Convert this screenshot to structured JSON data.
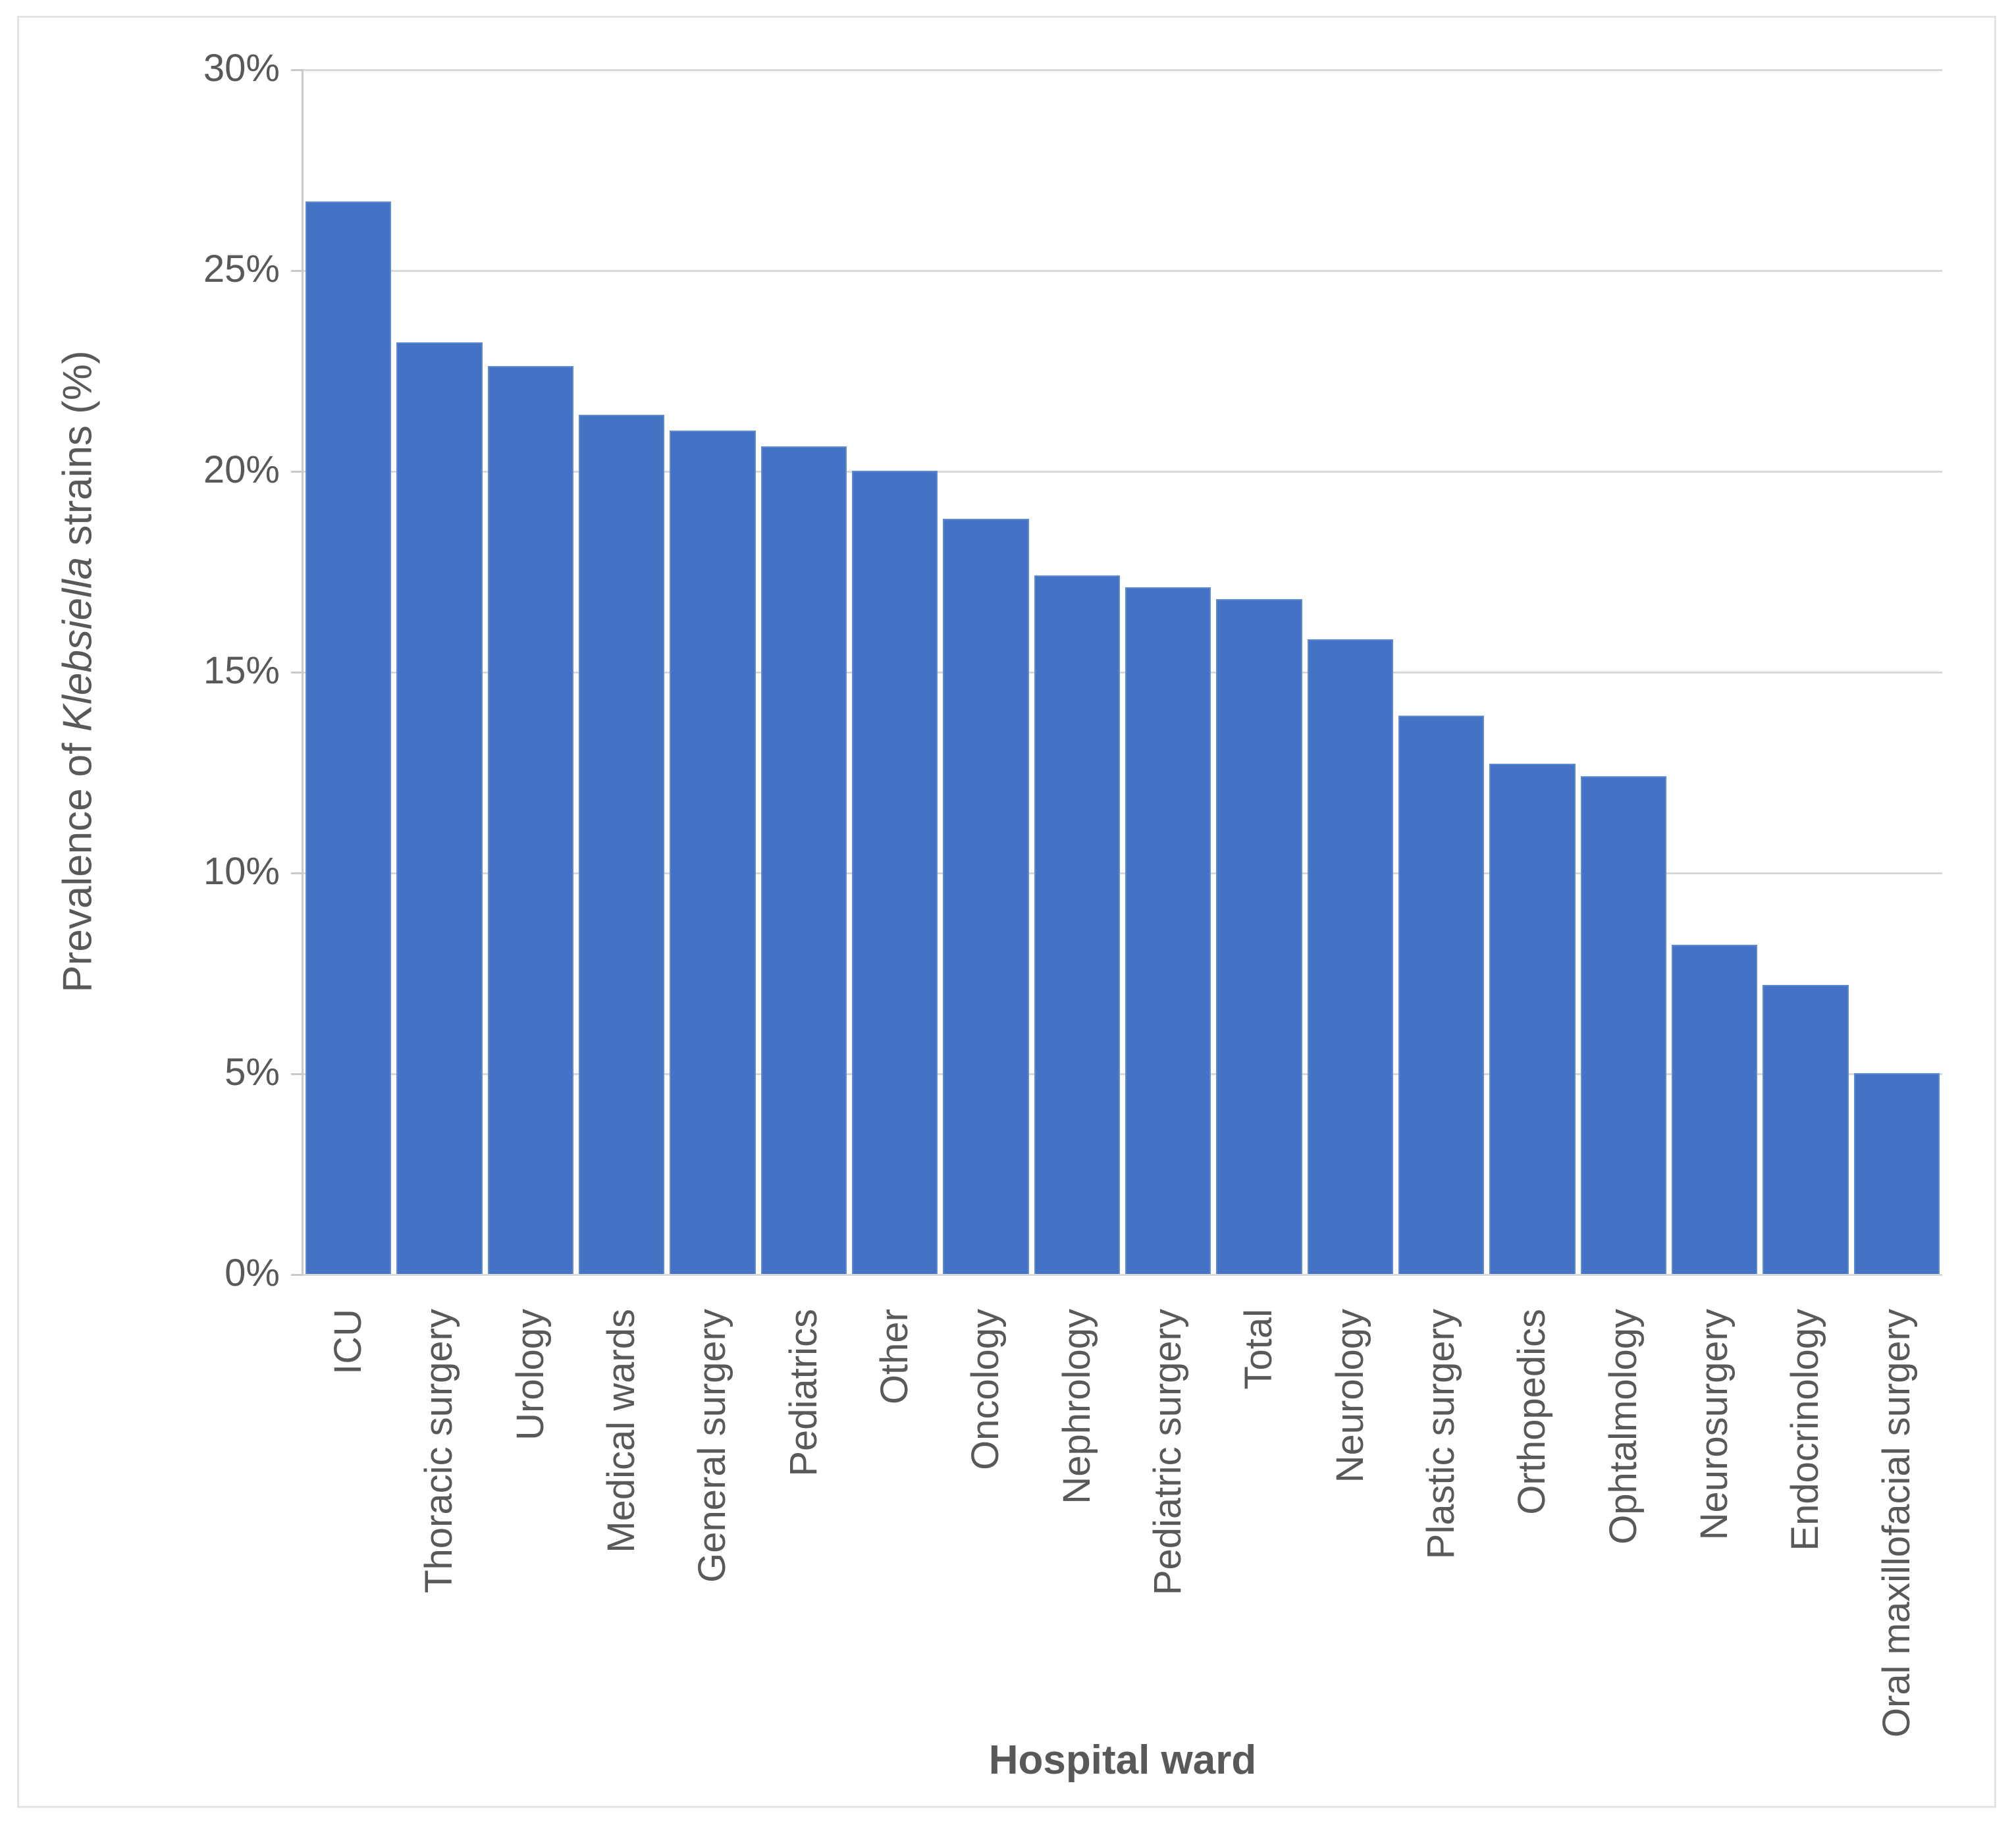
{
  "chart_data": {
    "type": "bar",
    "title": "",
    "categories": [
      "ICU",
      "Thoracic surgery",
      "Urology",
      "Medical wards",
      "General surgery",
      "Pediatrics",
      "Other",
      "Oncology",
      "Nephrology",
      "Pediatric surgery",
      "Total",
      "Neurology",
      "Plastic surgery",
      "Orthopedics",
      "Ophtalmology",
      "Neurosurgery",
      "Endocrinology",
      "Oral maxillofacial surgery"
    ],
    "values": [
      26.7,
      23.2,
      22.6,
      21.4,
      21.0,
      20.6,
      20.0,
      18.8,
      17.4,
      17.1,
      16.8,
      15.8,
      13.9,
      12.7,
      12.4,
      8.2,
      7.2,
      5.0
    ],
    "xlabel": "Hospital ward",
    "ylabel_parts": {
      "prefix": "Prevalence of ",
      "italic": "Klebsiella",
      "suffix": " strains (%)"
    },
    "ylim": [
      0,
      30
    ],
    "ytick_step": 5,
    "ytick_labels": [
      "30%",
      "25%",
      "20%",
      "15%",
      "10%",
      "5%",
      "0%"
    ],
    "grid": true,
    "legend": false,
    "colors": {
      "bar_fill": "#4472c4",
      "bar_edge": "#5e8ad2",
      "gridline": "#d9d9d9",
      "axis_line": "#c9c9c9",
      "label_text": "#595959",
      "frame_border": "#e4e4e4",
      "background": "#ffffff"
    }
  }
}
